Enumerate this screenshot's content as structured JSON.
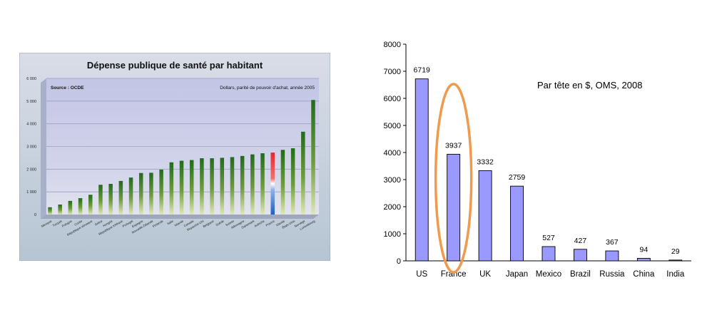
{
  "chart_data": [
    {
      "type": "bar",
      "title": "Dépense publique de santé par habitant",
      "source": "Source : OCDE",
      "subtitle": "Dollars, parité de pouvoir d'achat, année 2005",
      "ylim": [
        0,
        6000
      ],
      "yticks": [
        "6 000",
        "5 000",
        "4 000",
        "3 000",
        "2 000",
        "1 000",
        "0"
      ],
      "categories": [
        "Mexique",
        "Turquie",
        "Pologne",
        "Corée",
        "République slovaque",
        "Grèce",
        "Hongrie",
        "République tchèque",
        "Portugal",
        "Espagne",
        "Nouvelle-Zélande",
        "Finlande",
        "Italie",
        "Islande",
        "Canada",
        "Royaume-Uni",
        "Belgique",
        "Suède",
        "Suisse",
        "Allemagne",
        "Danemark",
        "Autriche",
        "France",
        "Irlande",
        "États-Unis",
        "Norvège",
        "Luxembourg"
      ],
      "values": [
        320,
        440,
        600,
        720,
        870,
        1310,
        1350,
        1480,
        1630,
        1830,
        1840,
        1980,
        2300,
        2370,
        2400,
        2480,
        2480,
        2500,
        2530,
        2580,
        2650,
        2700,
        2730,
        2850,
        2920,
        3650,
        5050
      ],
      "highlight_index": 22,
      "colors": {
        "bar": "#2e7a28",
        "highlight": "tricolor",
        "plot_bg": "#c9cbe6",
        "frame": "#b9c6d4"
      }
    },
    {
      "type": "bar",
      "annotation": "Par tête en $, OMS, 2008",
      "ylim": [
        0,
        8000
      ],
      "yticks": [
        "8000",
        "7000",
        "6000",
        "5000",
        "4000",
        "3000",
        "2000",
        "1000",
        "0"
      ],
      "categories": [
        "US",
        "France",
        "UK",
        "Japan",
        "Mexico",
        "Brazil",
        "Russia",
        "China",
        "India"
      ],
      "values": [
        6719,
        3937,
        3332,
        2759,
        527,
        427,
        367,
        94,
        29
      ],
      "value_labels": [
        "6719",
        "3937",
        "3332",
        "2759",
        "527",
        "427",
        "367",
        "94",
        "29"
      ],
      "highlight_index": 1,
      "colors": {
        "bar": "#9999ff",
        "bar_edge": "#000000",
        "ellipse": "#ef9a4c"
      }
    }
  ]
}
